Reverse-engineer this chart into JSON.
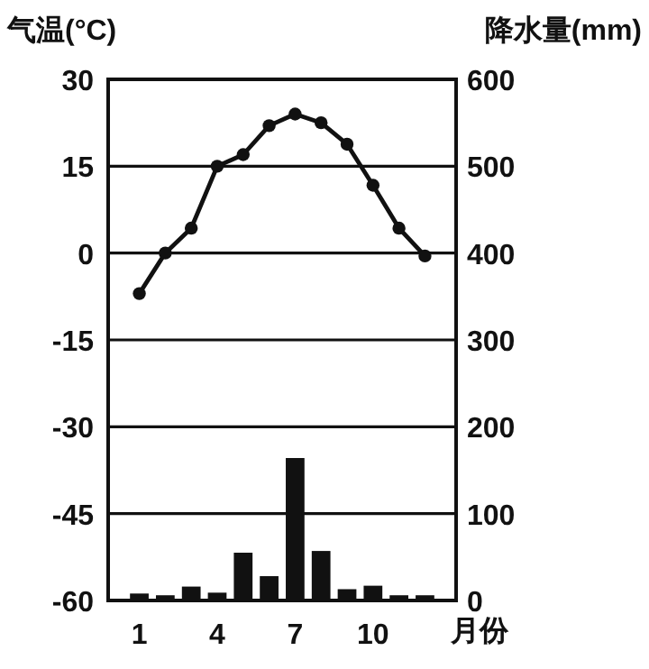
{
  "chart_data": {
    "type": "bar",
    "ylabel": "气温(°C)",
    "y2label": "降水量(mm)",
    "xlabel": "月份",
    "categories": [
      "1",
      null,
      null,
      "4",
      null,
      null,
      "7",
      null,
      null,
      "10",
      null,
      null
    ],
    "series": [
      {
        "axis": "y2",
        "color": "#111111",
        "values": [
          8,
          6,
          16,
          9,
          55,
          28,
          164,
          57,
          13,
          17,
          6,
          6
        ]
      },
      {
        "type": "line",
        "axis": "y",
        "color": "#111111",
        "marker": "circle",
        "values": [
          -7,
          0,
          4.3,
          15,
          17,
          22,
          24,
          22.5,
          18.8,
          11.7,
          4.3,
          -0.5
        ]
      }
    ],
    "ylim": [
      -60,
      30
    ],
    "yticks": [
      30,
      15,
      0,
      -15,
      -30,
      -45,
      -60
    ],
    "y2lim": [
      0,
      600
    ],
    "y2ticks": [
      600,
      500,
      400,
      300,
      200,
      100,
      0
    ],
    "grid": "y"
  }
}
